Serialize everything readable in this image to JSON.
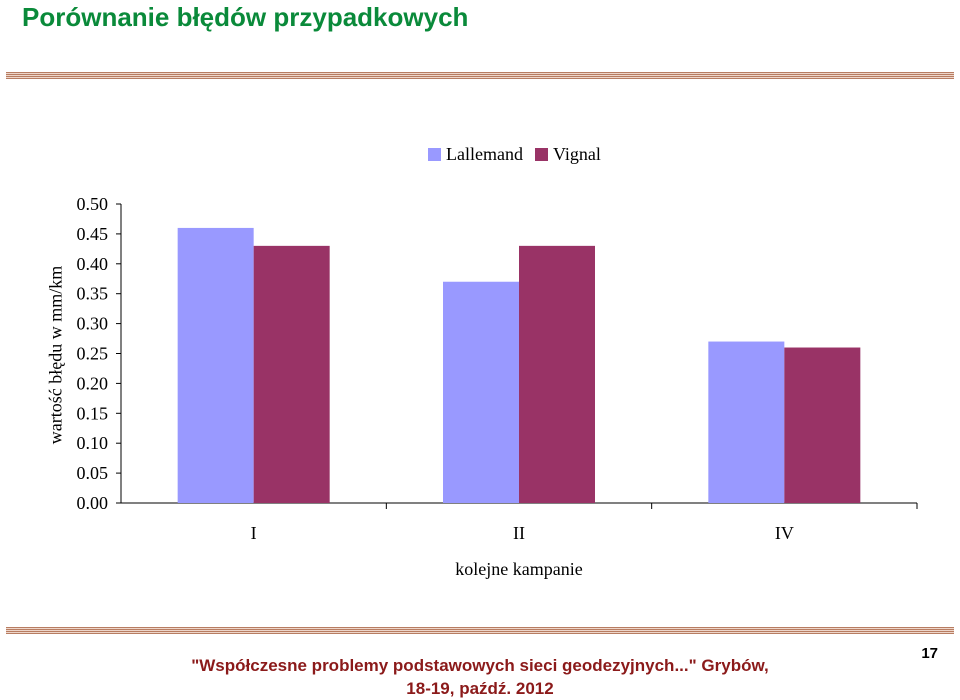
{
  "slide": {
    "title": "Porównanie błędów przypadkowych",
    "footer_line1": "\"Współczesne problemy podstawowych sieci geodezyjnych...\" Grybów,",
    "footer_line2": "18-19, paźdź. 2012",
    "page_number": "17"
  },
  "chart_data": {
    "type": "bar",
    "title": "",
    "xlabel": "kolejne kampanie",
    "ylabel": "wartość błędu w mm/km",
    "categories": [
      "I",
      "II",
      "IV"
    ],
    "series": [
      {
        "name": "Lallemand",
        "values": [
          0.46,
          0.37,
          0.27
        ],
        "color": "#9999ff"
      },
      {
        "name": "Vignal",
        "values": [
          0.43,
          0.43,
          0.26
        ],
        "color": "#993366"
      }
    ],
    "ylim": [
      0,
      0.5
    ],
    "yticks": [
      "0.00",
      "0.05",
      "0.10",
      "0.15",
      "0.20",
      "0.25",
      "0.30",
      "0.35",
      "0.40",
      "0.45",
      "0.50"
    ],
    "grid": false,
    "legend": "top"
  }
}
